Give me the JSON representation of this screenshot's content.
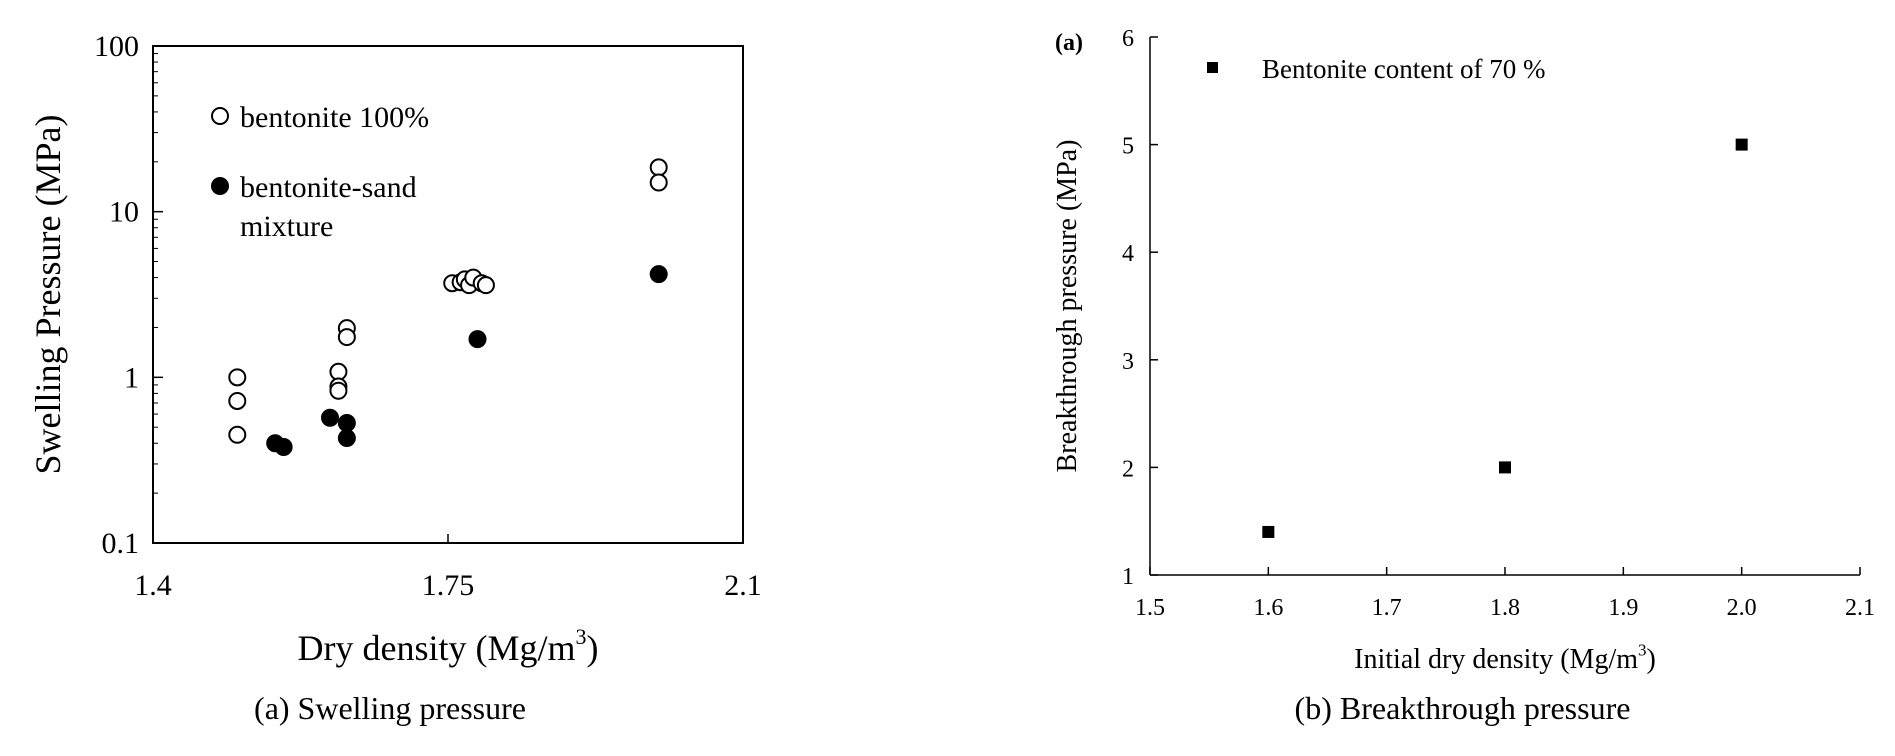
{
  "chart_data": [
    {
      "type": "scatter",
      "caption": "(a) Swelling pressure",
      "xlabel": "Dry density (Mg/m",
      "xlabel_sup": "3",
      "xlabel_end": ")",
      "ylabel": "Swelling Pressure (MPa)",
      "xlim": [
        1.4,
        2.1
      ],
      "ylim": [
        0.1,
        100
      ],
      "yscale": "log",
      "x_ticks": [
        1.4,
        1.75,
        2.1
      ],
      "x_tick_labels": [
        "1.4",
        "1.75",
        "2.1"
      ],
      "y_ticks": [
        0.1,
        1,
        10,
        100
      ],
      "y_tick_labels": [
        "0.1",
        "1",
        "10",
        "100"
      ],
      "grid": false,
      "legend_position": "top-left",
      "series": [
        {
          "name": "bentonite 100%",
          "marker": "open-circle",
          "points": [
            [
              1.5,
              1.0
            ],
            [
              1.5,
              0.72
            ],
            [
              1.5,
              0.45
            ],
            [
              1.62,
              1.08
            ],
            [
              1.62,
              0.88
            ],
            [
              1.62,
              0.83
            ],
            [
              1.63,
              1.98
            ],
            [
              1.63,
              1.75
            ],
            [
              1.755,
              3.7
            ],
            [
              1.765,
              3.75
            ],
            [
              1.77,
              3.9
            ],
            [
              1.775,
              3.6
            ],
            [
              1.78,
              4.0
            ],
            [
              1.79,
              3.7
            ],
            [
              1.795,
              3.6
            ],
            [
              2.0,
              18.5
            ],
            [
              2.0,
              15.0
            ]
          ]
        },
        {
          "name": "bentonite-sand",
          "name_line2": "mixture",
          "marker": "filled-circle",
          "points": [
            [
              1.545,
              0.4
            ],
            [
              1.555,
              0.38
            ],
            [
              1.61,
              0.57
            ],
            [
              1.63,
              0.53
            ],
            [
              1.63,
              0.43
            ],
            [
              1.785,
              1.7
            ],
            [
              2.0,
              4.2
            ]
          ]
        }
      ]
    },
    {
      "type": "scatter",
      "caption": "(b) Breakthrough pressure",
      "panel_tag": "(a)",
      "xlabel": "Initial dry density (Mg/m",
      "xlabel_sup": "3",
      "xlabel_end": ")",
      "ylabel": "Breakthrough pressure (MPa)",
      "xlim": [
        1.5,
        2.1
      ],
      "ylim": [
        1,
        6
      ],
      "x_ticks": [
        1.5,
        1.6,
        1.7,
        1.8,
        1.9,
        2.0,
        2.1
      ],
      "x_tick_labels": [
        "1.5",
        "1.6",
        "1.7",
        "1.8",
        "1.9",
        "2.0",
        "2.1"
      ],
      "y_ticks": [
        1,
        2,
        3,
        4,
        5,
        6
      ],
      "y_tick_labels": [
        "1",
        "2",
        "3",
        "4",
        "5",
        "6"
      ],
      "grid": false,
      "legend_position": "top-left",
      "series": [
        {
          "name": "Bentonite content of 70 %",
          "marker": "filled-square",
          "points": [
            [
              1.6,
              1.4
            ],
            [
              1.8,
              2.0
            ],
            [
              2.0,
              5.0
            ]
          ]
        }
      ]
    }
  ]
}
